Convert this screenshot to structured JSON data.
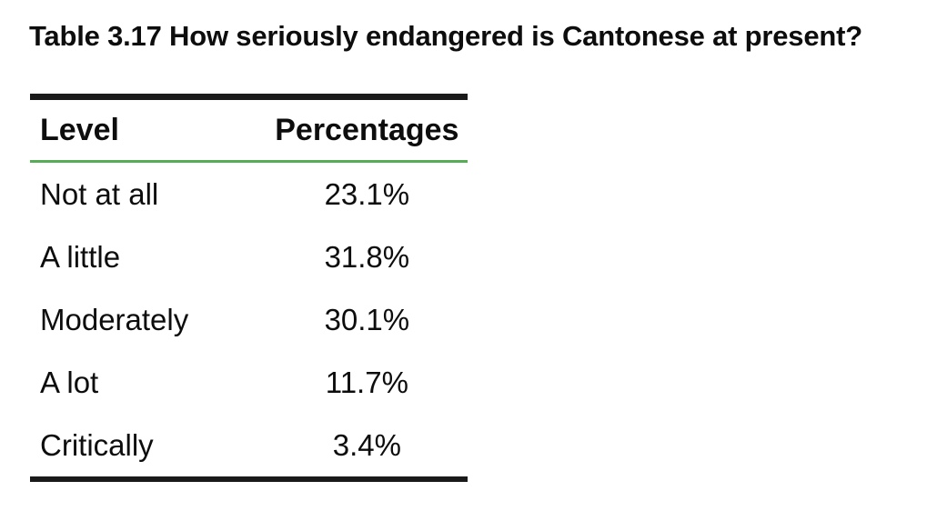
{
  "caption": "Table 3.17 How seriously endangered is Cantonese at present?",
  "table": {
    "headers": {
      "level": "Level",
      "percentages": "Percentages"
    },
    "rows": [
      {
        "level": "Not at all",
        "pct": "23.1%"
      },
      {
        "level": "A little",
        "pct": "31.8%"
      },
      {
        "level": "Moderately",
        "pct": "30.1%"
      },
      {
        "level": "A lot",
        "pct": "11.7%"
      },
      {
        "level": "Critically",
        "pct": "3.4%"
      }
    ]
  },
  "colors": {
    "text-color": "#0d0d0d",
    "border-color": "#1a1a1a",
    "divider-color": "#56ad56",
    "bg-color": "#ffffff"
  },
  "chart_data": {
    "type": "table",
    "title": "Table 3.17 How seriously endangered is Cantonese at present?",
    "columns": [
      "Level",
      "Percentages"
    ],
    "categories": [
      "Not at all",
      "A little",
      "Moderately",
      "A lot",
      "Critically"
    ],
    "values": [
      23.1,
      31.8,
      30.1,
      11.7,
      3.4
    ],
    "unit": "%",
    "layout_hints": {
      "top_bottom_rules": "thick black",
      "header_divider": "thin green",
      "value_alignment": "center"
    }
  }
}
